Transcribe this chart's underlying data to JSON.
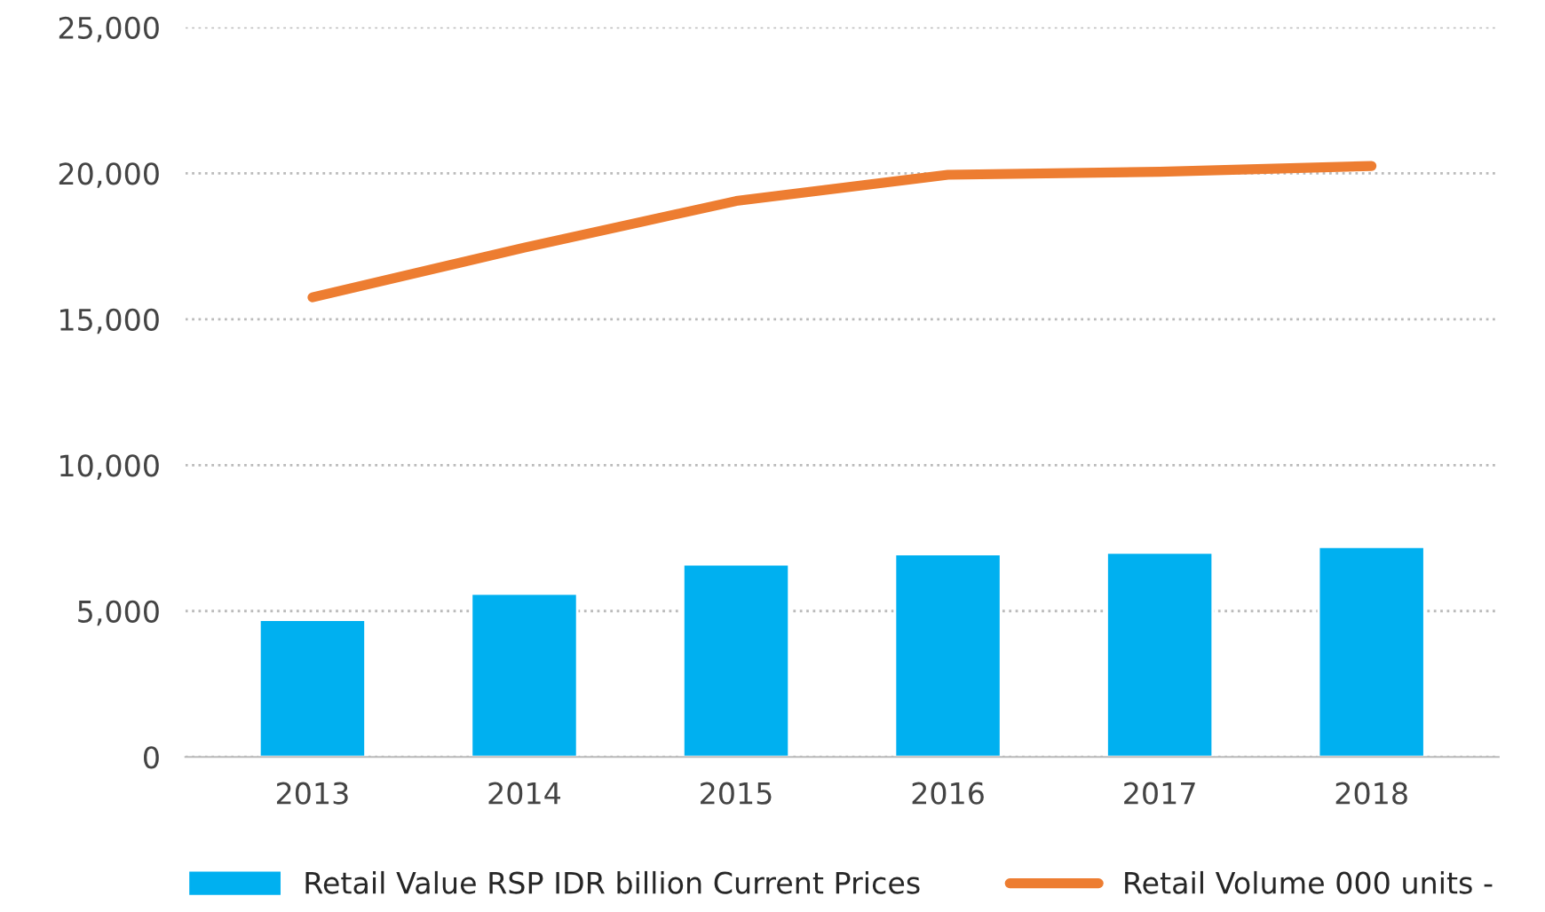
{
  "chart_data": {
    "type": "bar",
    "categories": [
      "2013",
      "2014",
      "2015",
      "2016",
      "2017",
      "2018"
    ],
    "series": [
      {
        "name": "Retail Value RSP IDR billion Current Prices",
        "color": "#00b0f0",
        "values": [
          4700,
          5600,
          6600,
          6950,
          7000,
          7200
        ]
      },
      {
        "name": "Retail Volume 000 units -",
        "type": "line",
        "color": "#ed7d31",
        "values": [
          15750,
          17450,
          19050,
          19950,
          20050,
          20250
        ]
      }
    ],
    "ylim": [
      0,
      25000
    ],
    "yticks": [
      {
        "value": 0,
        "label": "0"
      },
      {
        "value": 5000,
        "label": "5,000"
      },
      {
        "value": 10000,
        "label": "10,000"
      },
      {
        "value": 15000,
        "label": "15,000"
      },
      {
        "value": 20000,
        "label": "20,000"
      },
      {
        "value": 25000,
        "label": "25,000"
      }
    ],
    "grid": "y",
    "legend": "bottom",
    "marker": "none"
  }
}
